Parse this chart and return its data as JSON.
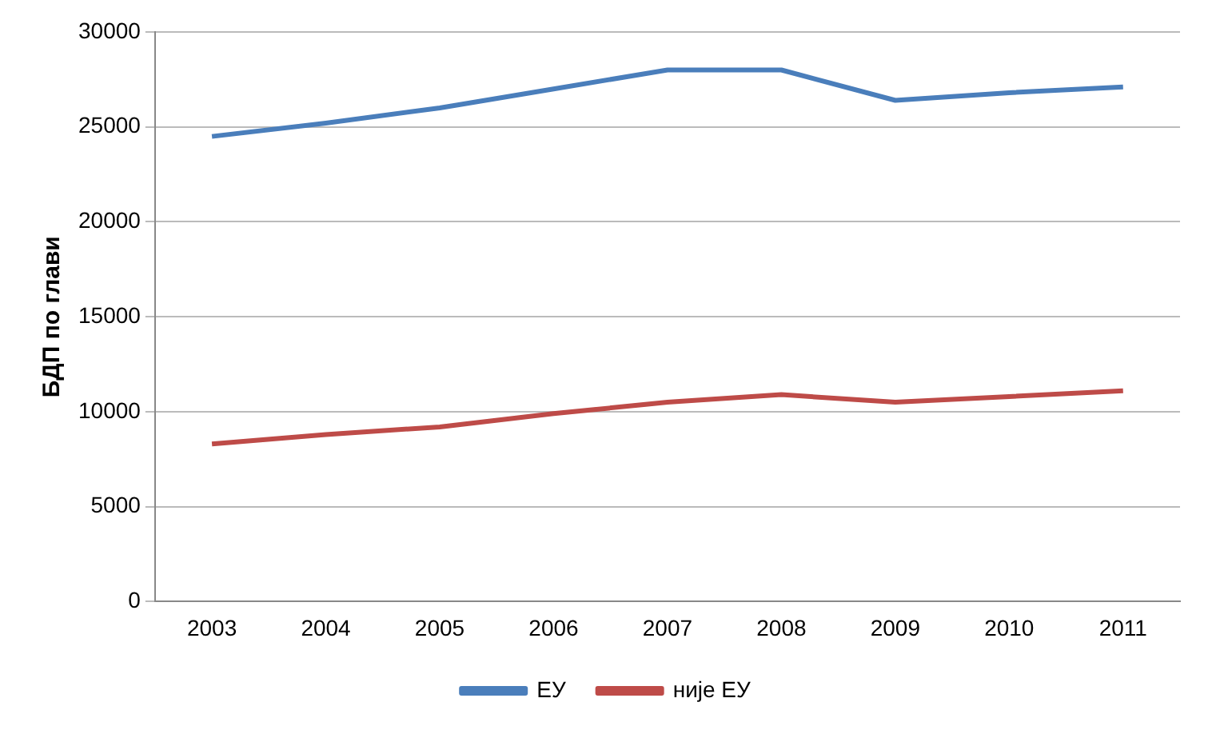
{
  "chart_data": {
    "type": "line",
    "ylabel": "БДП по глави",
    "categories": [
      "2003",
      "2004",
      "2005",
      "2006",
      "2007",
      "2008",
      "2009",
      "2010",
      "2011"
    ],
    "series": [
      {
        "name": "ЕУ",
        "color": "#4a7ebb",
        "values": [
          24500,
          25200,
          26000,
          27000,
          28000,
          28000,
          26400,
          26800,
          27100
        ]
      },
      {
        "name": "није ЕУ",
        "color": "#be4b48",
        "values": [
          8300,
          8800,
          9200,
          9900,
          10500,
          10900,
          10500,
          10800,
          11100
        ]
      }
    ],
    "ylim": [
      0,
      30000
    ],
    "yticks": [
      0,
      5000,
      10000,
      15000,
      20000,
      25000,
      30000
    ],
    "grid": "y",
    "legend": "bottom",
    "marker": "none",
    "line_style": "solid"
  }
}
